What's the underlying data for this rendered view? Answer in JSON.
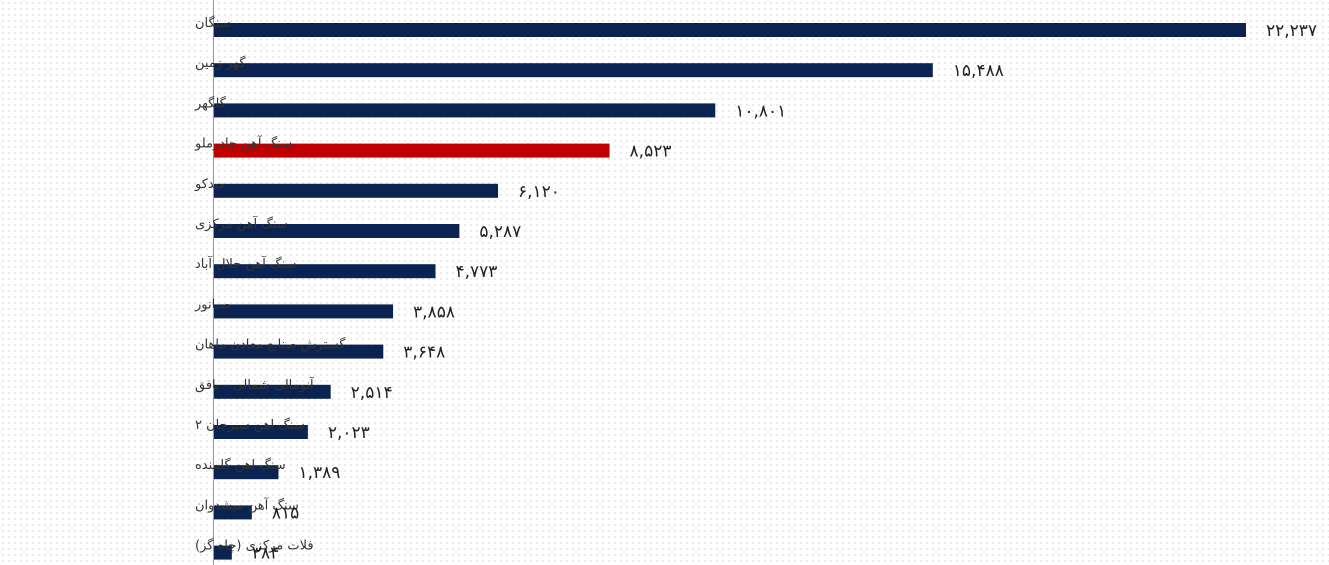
{
  "chart_data": {
    "type": "bar",
    "orientation": "horizontal",
    "categories": [
      "سنگان",
      "گهر زمین",
      "گلگهر",
      "سنگ آهن چادرملو",
      "میدکو",
      "سنگ آهن مرکزی",
      "سنگ آهن جلال آباد",
      "صبانور",
      "گسترش صنایع معادن ماهان",
      "آنومالی شمالی - بافق",
      "سنگ اهن سیرجان ۲",
      "سنگ اهن گلمنده",
      "سنگ آهن میشدوان",
      "فلات مرکزی (چاه گز)"
    ],
    "values": [
      22237,
      15488,
      10801,
      8523,
      6120,
      5287,
      4773,
      3858,
      3648,
      2514,
      2023,
      1389,
      815,
      384
    ],
    "value_labels": [
      "۲۲,۲۳۷",
      "۱۵,۴۸۸",
      "۱۰,۸۰۱",
      "۸,۵۲۳",
      "۶,۱۲۰",
      "۵,۲۸۷",
      "۴,۷۷۳",
      "۳,۸۵۸",
      "۳,۶۴۸",
      "۲,۵۱۴",
      "۲,۰۲۳",
      "۱,۳۸۹",
      "۸۱۵",
      "۳۸۴"
    ],
    "highlight_index": 3,
    "title": "",
    "xlabel": "",
    "ylabel": "",
    "xlim": [
      0,
      22237
    ],
    "grid": false,
    "legend": "none",
    "colors": {
      "bar": "#0b2350",
      "highlight": "#c00000",
      "axis": "#999999"
    }
  }
}
